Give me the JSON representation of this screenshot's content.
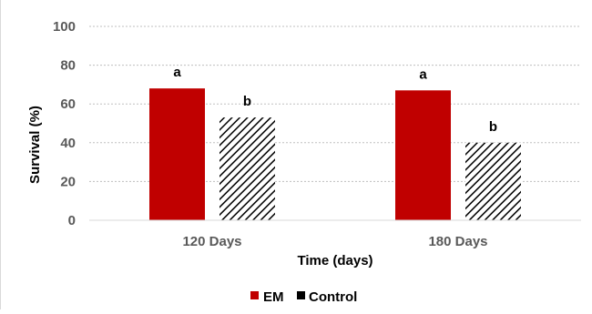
{
  "chart_data": {
    "type": "bar",
    "title": "",
    "xlabel": "Time (days)",
    "ylabel": "Survival (%)",
    "categories": [
      "120 Days",
      "180 Days"
    ],
    "ylim": [
      0,
      100
    ],
    "yticks": [
      0,
      20,
      40,
      60,
      80,
      100
    ],
    "grid": true,
    "legend_position": "bottom",
    "series": [
      {
        "name": "EM",
        "values": [
          68,
          67
        ],
        "labels": [
          "a",
          "a"
        ],
        "color": "#c00000",
        "pattern": "solid"
      },
      {
        "name": "Control",
        "values": [
          53,
          40
        ],
        "labels": [
          "b",
          "b"
        ],
        "color": "#000000",
        "pattern": "diagonal-stripes"
      }
    ]
  }
}
